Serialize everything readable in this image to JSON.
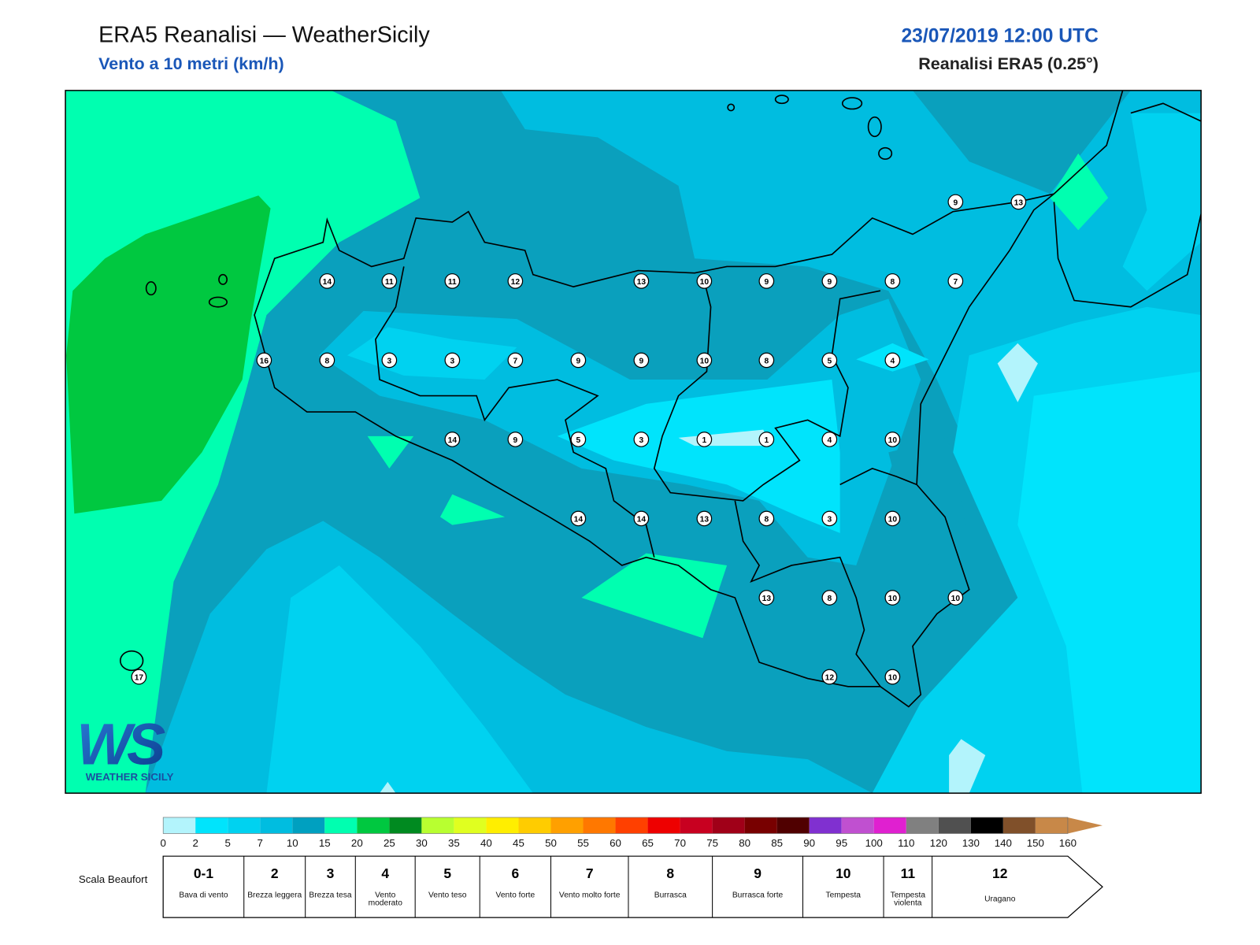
{
  "header": {
    "title": "ERA5 Reanalisi — WeatherSicily",
    "subtitle": "Vento a 10 metri (km/h)",
    "datetime": "23/07/2019 12:00 UTC",
    "source": "Reanalisi ERA5 (0.25°)"
  },
  "map": {
    "stations": [
      9,
      13,
      14,
      11,
      11,
      12,
      13,
      10,
      9,
      9,
      8,
      7,
      16,
      8,
      3,
      3,
      7,
      9,
      9,
      10,
      8,
      5,
      4,
      14,
      9,
      5,
      3,
      1,
      1,
      4,
      10,
      14,
      14,
      13,
      8,
      3,
      10,
      13,
      8,
      10,
      10,
      12,
      10,
      17
    ]
  },
  "logo": {
    "mark": "WS",
    "text": "WEATHER SICILY"
  },
  "colorbar": {
    "ticks": [
      0,
      2,
      5,
      7,
      10,
      15,
      20,
      25,
      30,
      35,
      40,
      45,
      50,
      55,
      60,
      65,
      70,
      75,
      80,
      85,
      90,
      95,
      100,
      110,
      120,
      130,
      140,
      150,
      160
    ],
    "colors": [
      "#b3f4fc",
      "#00e4fc",
      "#00d2f0",
      "#00bde0",
      "#00a0c0",
      "#00ffb0",
      "#00c840",
      "#008a20",
      "#b8ff30",
      "#e0ff20",
      "#ffee00",
      "#ffcc00",
      "#ffa000",
      "#ff7800",
      "#ff4000",
      "#ee0000",
      "#c80020",
      "#a00018",
      "#780000",
      "#500000",
      "#8030d0",
      "#c050d0",
      "#e020d0",
      "#808080",
      "#505050",
      "#000000",
      "#80502a",
      "#c88848"
    ]
  },
  "beaufort": {
    "title": "Scala Beaufort",
    "levels": [
      {
        "force": "0-1",
        "label": "Bava di vento"
      },
      {
        "force": 2,
        "label": "Brezza leggera"
      },
      {
        "force": 3,
        "label": "Brezza tesa"
      },
      {
        "force": 4,
        "label": "Vento moderato"
      },
      {
        "force": 5,
        "label": "Vento teso"
      },
      {
        "force": 6,
        "label": "Vento forte"
      },
      {
        "force": 7,
        "label": "Vento molto forte"
      },
      {
        "force": 8,
        "label": "Burrasca"
      },
      {
        "force": 9,
        "label": "Burrasca forte"
      },
      {
        "force": 10,
        "label": "Tempesta"
      },
      {
        "force": 11,
        "label": "Tempesta violenta"
      },
      {
        "force": 12,
        "label": "Uragano"
      }
    ]
  }
}
